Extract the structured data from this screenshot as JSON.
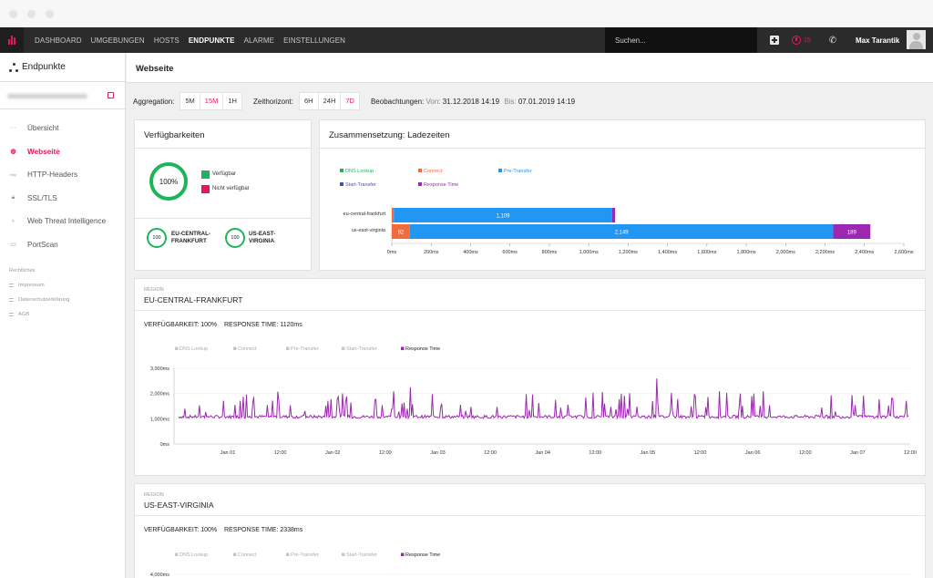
{
  "nav": {
    "items": [
      {
        "label": "DASHBOARD",
        "active": false
      },
      {
        "label": "UMGEBUNGEN",
        "active": false
      },
      {
        "label": "HOSTS",
        "active": false
      },
      {
        "label": "ENDPUNKTE",
        "active": true
      },
      {
        "label": "ALARME",
        "active": false
      },
      {
        "label": "EINSTELLUNGEN",
        "active": false
      }
    ],
    "search_placeholder": "Suchen...",
    "alert_count": "15",
    "user_name": "Max Tarantik"
  },
  "sidebar": {
    "title": "Endpunkte",
    "menu": [
      {
        "label": "Übersicht",
        "icon": "ellipsis-icon",
        "active": false
      },
      {
        "label": "Webseite",
        "icon": "globe-icon",
        "active": true
      },
      {
        "label": "HTTP-Headers",
        "icon": "http-icon",
        "active": false
      },
      {
        "label": "SSL/TLS",
        "icon": "lock-icon",
        "active": false
      },
      {
        "label": "Web Threat Intelligence",
        "icon": "bulb-icon",
        "active": false
      },
      {
        "label": "PortScan",
        "icon": "monitor-icon",
        "active": false
      }
    ],
    "legal_heading": "Rechtliches",
    "legal": [
      "Impressum",
      "Datenschutzerklärung",
      "AGB"
    ]
  },
  "page": {
    "title": "Webseite",
    "aggregation_label": "Aggregation:",
    "aggregation_options": [
      {
        "label": "5M",
        "selected": false
      },
      {
        "label": "15M",
        "selected": true
      },
      {
        "label": "1H",
        "selected": false
      }
    ],
    "horizon_label": "Zeithorizont:",
    "horizon_options": [
      {
        "label": "6H",
        "selected": false
      },
      {
        "label": "24H",
        "selected": false
      },
      {
        "label": "7D",
        "selected": true
      }
    ],
    "observations_label": "Beobachtungen:",
    "from_label": "Von:",
    "from_value": "31.12.2018 14:19",
    "to_label": "Bis:",
    "to_value": "07.01.2019 14:19"
  },
  "availability": {
    "title": "Verfügbarkeiten",
    "overall_value": "100%",
    "legend": [
      {
        "label": "Verfügbar",
        "color": "#1fb35a"
      },
      {
        "label": "Nicht verfügbar",
        "color": "#e8175d"
      }
    ],
    "regions": [
      {
        "value": "100",
        "name_line1": "EU-CENTRAL-",
        "name_line2": "FRANKFURT"
      },
      {
        "value": "100",
        "name_line1": "US-EAST-",
        "name_line2": "VIRGINIA"
      }
    ]
  },
  "composition": {
    "title": "Zusammensetzung: Ladezeiten"
  },
  "regions": [
    {
      "section_label": "REGION",
      "name": "EU-CENTRAL-FRANKFURT",
      "availability_label": "VERFÜGBARKEIT:",
      "availability_value": "100%",
      "response_label": "RESPONSE TIME:",
      "response_value": "1120ms"
    },
    {
      "section_label": "REGION",
      "name": "US-EAST-VIRGINIA",
      "availability_label": "VERFÜGBARKEIT:",
      "availability_value": "100%",
      "response_label": "RESPONSE TIME:",
      "response_value": "2338ms"
    }
  ],
  "chart_data": [
    {
      "type": "bar",
      "orientation": "horizontal",
      "stacked": true,
      "categories": [
        "eu-central-frankfurt",
        "us-east-virginia"
      ],
      "series": [
        {
          "name": "DNS Lookup",
          "color": "#1fb35a",
          "values": [
            0,
            0
          ],
          "labels": [
            "",
            ""
          ]
        },
        {
          "name": "Connect",
          "color": "#f26b3a",
          "values": [
            10,
            92
          ],
          "labels": [
            "",
            "92"
          ]
        },
        {
          "name": "Pre-Transfer",
          "color": "#2196f3",
          "values": [
            1109,
            2149
          ],
          "labels": [
            "1,109",
            "2,149"
          ]
        },
        {
          "name": "Start-Transfer",
          "color": "#3f51b5",
          "values": [
            0,
            0
          ],
          "labels": [
            "",
            ""
          ]
        },
        {
          "name": "Response Time",
          "color": "#9c27b0",
          "values": [
            15,
            189
          ],
          "labels": [
            "",
            "189"
          ]
        }
      ],
      "xlim": [
        0,
        2600
      ],
      "x_ticks": [
        "0ms",
        "200ms",
        "400ms",
        "600ms",
        "800ms",
        "1,000ms",
        "1,200ms",
        "1,400ms",
        "1,600ms",
        "1,800ms",
        "2,000ms",
        "2,200ms",
        "2,400ms",
        "2,600ms"
      ]
    },
    {
      "type": "line",
      "legend": [
        {
          "name": "DNS Lookup",
          "active": false
        },
        {
          "name": "Connect",
          "active": false
        },
        {
          "name": "Pre-Transfer",
          "active": false
        },
        {
          "name": "Start-Transfer",
          "active": false
        },
        {
          "name": "Response Time",
          "active": true,
          "color": "#9c27b0"
        }
      ],
      "ylim": [
        0,
        3000
      ],
      "y_ticks": [
        "0ms",
        "1,000ms",
        "2,000ms",
        "3,000ms"
      ],
      "x_ticks": [
        "Jan 01",
        "12:00",
        "Jan 02",
        "12:00",
        "Jan 03",
        "12:00",
        "Jan 04",
        "12:00",
        "Jan 05",
        "12:00",
        "Jan 06",
        "12:00",
        "Jan 07",
        "12:00"
      ],
      "baseline_ms": 1080,
      "spike_count": 56
    },
    {
      "type": "line",
      "legend": [
        {
          "name": "DNS Lookup",
          "active": false
        },
        {
          "name": "Connect",
          "active": false
        },
        {
          "name": "Pre-Transfer",
          "active": false
        },
        {
          "name": "Start-Transfer",
          "active": false
        },
        {
          "name": "Response Time",
          "active": true,
          "color": "#9c27b0"
        }
      ],
      "y_ticks": [
        "4,000ms"
      ]
    }
  ]
}
